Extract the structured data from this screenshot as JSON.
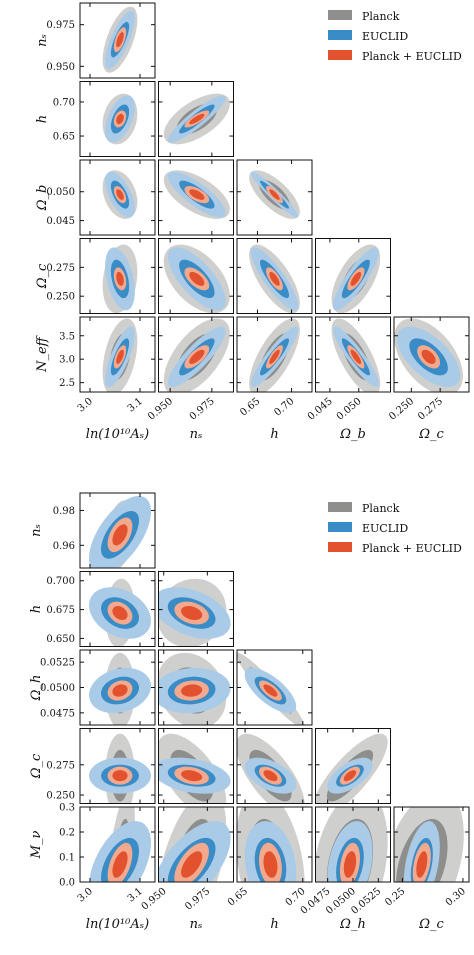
{
  "colors": {
    "planck_outer": "#cfcfcd",
    "planck_inner": "#8e8e8c",
    "euclid_outer": "#a9cbe8",
    "euclid_inner": "#3a8cc6",
    "joint_outer": "#f3a98e",
    "joint_inner": "#e2522e"
  },
  "legend": [
    "Planck",
    "EUCLID",
    "Planck + EUCLID"
  ],
  "chart_data": [
    {
      "type": "scatter",
      "variant": "triangle-corner-plot",
      "legend": [
        "Planck",
        "EUCLID",
        "Planck + EUCLID"
      ],
      "params": [
        {
          "label": "ln(10¹⁰Aₛ)",
          "range": [
            2.98,
            3.13
          ],
          "ticks": [
            "3.0",
            "3.1"
          ],
          "tick_values": [
            3.0,
            3.1
          ]
        },
        {
          "label": "nₛ",
          "range": [
            0.943,
            0.988
          ],
          "ticks": [
            "0.950",
            "0.975"
          ],
          "tick_values": [
            0.95,
            0.975
          ]
        },
        {
          "label": "h",
          "range": [
            0.62,
            0.73
          ],
          "ticks": [
            "0.65",
            "0.70"
          ],
          "tick_values": [
            0.65,
            0.7
          ]
        },
        {
          "label": "Ω_b",
          "range": [
            0.0425,
            0.0555
          ],
          "ticks": [
            "0.045",
            "0.050"
          ],
          "tick_values": [
            0.045,
            0.05
          ]
        },
        {
          "label": "Ω_c",
          "range": [
            0.235,
            0.3
          ],
          "ticks": [
            "0.250",
            "0.275"
          ],
          "tick_values": [
            0.25,
            0.275
          ]
        },
        {
          "label": "N_eff",
          "range": [
            2.3,
            3.9
          ],
          "ticks": [
            "2.5",
            "3.0",
            "3.5"
          ],
          "tick_values": [
            2.5,
            3.0,
            3.5
          ]
        }
      ],
      "ytick_labels": [
        [
          "0.950",
          "0.975"
        ],
        [
          "0.65",
          "0.70"
        ],
        [
          "0.045",
          "0.050"
        ],
        [
          "0.250",
          "0.275"
        ],
        [
          "2.5",
          "3.0",
          "3.5"
        ]
      ],
      "center": [
        3.06,
        0.966,
        0.675,
        0.0495,
        0.265,
        3.05
      ],
      "sigma": {
        "planck": [
          0.014,
          0.008,
          0.015,
          0.0017,
          0.012,
          0.33
        ],
        "euclid": [
          0.012,
          0.007,
          0.014,
          0.0016,
          0.011,
          0.26
        ],
        "joint": [
          0.005,
          0.003,
          0.005,
          0.0006,
          0.004,
          0.1
        ]
      },
      "correlations": {
        "r10": [
          0.6,
          0.75,
          0.6
        ],
        "r20": [
          0.2,
          0.5,
          0.3
        ],
        "r21": [
          0.6,
          0.9,
          0.8
        ],
        "r30": [
          -0.3,
          -0.6,
          -0.5
        ],
        "r31": [
          -0.6,
          -0.8,
          -0.6
        ],
        "r32": [
          -0.7,
          -0.95,
          -0.8
        ],
        "r40": [
          0.2,
          -0.4,
          -0.3
        ],
        "r41": [
          -0.5,
          -0.7,
          -0.6
        ],
        "r42": [
          -0.7,
          -0.85,
          -0.7
        ],
        "r43": [
          0.6,
          0.85,
          0.7
        ],
        "r50": [
          0.4,
          0.75,
          0.6
        ],
        "r51": [
          0.6,
          0.85,
          0.7
        ],
        "r52": [
          0.7,
          0.9,
          0.8
        ],
        "r53": [
          -0.7,
          -0.9,
          -0.8
        ],
        "r54": [
          -0.5,
          -0.6,
          -0.5
        ]
      }
    },
    {
      "type": "scatter",
      "variant": "triangle-corner-plot",
      "legend": [
        "Planck",
        "EUCLID",
        "Planck + EUCLID"
      ],
      "params": [
        {
          "label": "ln(10¹⁰Aₛ)",
          "range": [
            2.98,
            3.13
          ],
          "ticks": [
            "3.0",
            "3.1"
          ],
          "tick_values": [
            3.0,
            3.1
          ]
        },
        {
          "label": "nₛ",
          "range": [
            0.947,
            0.99
          ],
          "ticks": [
            "0.950",
            "0.975"
          ],
          "tick_values": [
            0.95,
            0.975
          ]
        },
        {
          "label": "h",
          "range": [
            0.643,
            0.708
          ],
          "ticks": [
            "0.65",
            "0.70"
          ],
          "tick_values": [
            0.65,
            0.7
          ]
        },
        {
          "label": "Ω_h",
          "range": [
            0.0463,
            0.0537
          ],
          "ticks": [
            "0.0475",
            "0.0500",
            "0.0525"
          ],
          "tick_values": [
            0.0475,
            0.05,
            0.0525
          ]
        },
        {
          "label": "Ω_c",
          "range": [
            0.243,
            0.305
          ],
          "ticks": [
            "0.25",
            "0.30"
          ],
          "tick_values": [
            0.25,
            0.3
          ]
        },
        {
          "label": "M_ν",
          "range": [
            0.0,
            0.3
          ],
          "ticks": [
            "0.0",
            "0.1",
            "0.2",
            "0.3"
          ],
          "tick_values": [
            0.0,
            0.1,
            0.2,
            0.3
          ]
        }
      ],
      "ytick_labels": [
        [
          "0.96",
          "0.98"
        ],
        [
          "0.650",
          "0.675",
          "0.700"
        ],
        [
          "0.0475",
          "0.0500",
          "0.0525"
        ],
        [
          "0.250",
          "0.275"
        ],
        [
          "0.0",
          "0.1",
          "0.2",
          "0.3"
        ]
      ],
      "ytick_values": [
        [
          0.96,
          0.98
        ],
        [
          0.65,
          0.675,
          0.7
        ],
        [
          0.0475,
          0.05,
          0.0525
        ],
        [
          0.25,
          0.275
        ],
        [
          0.0,
          0.1,
          0.2,
          0.3
        ]
      ],
      "center": [
        3.06,
        0.966,
        0.672,
        0.0497,
        0.266,
        0.07
      ],
      "sigma": {
        "planck": [
          0.012,
          0.008,
          0.012,
          0.0015,
          0.014,
          0.12
        ],
        "euclid": [
          0.025,
          0.009,
          0.009,
          0.0009,
          0.006,
          0.07
        ],
        "joint": [
          0.01,
          0.004,
          0.004,
          0.0004,
          0.003,
          0.035
        ]
      },
      "correlations": {
        "r10": [
          0.3,
          0.6,
          0.5
        ],
        "r20": [
          0.1,
          -0.3,
          -0.3
        ],
        "r21": [
          0.1,
          -0.4,
          -0.3
        ],
        "r30": [
          0.0,
          0.2,
          0.2
        ],
        "r31": [
          -0.2,
          0.1,
          0.1
        ],
        "r32": [
          -0.95,
          -0.7,
          -0.7
        ],
        "r40": [
          0.0,
          0.0,
          0.0
        ],
        "r41": [
          -0.6,
          -0.3,
          -0.3
        ],
        "r42": [
          -0.7,
          -0.5,
          -0.5
        ],
        "r43": [
          0.8,
          0.6,
          0.6
        ],
        "r50": [
          0.6,
          0.5,
          0.5
        ],
        "r51": [
          0.5,
          0.6,
          0.6
        ],
        "r52": [
          -0.3,
          -0.2,
          -0.2
        ],
        "r53": [
          0.3,
          0.3,
          0.3
        ],
        "r54": [
          0.4,
          0.4,
          0.4
        ]
      }
    }
  ]
}
